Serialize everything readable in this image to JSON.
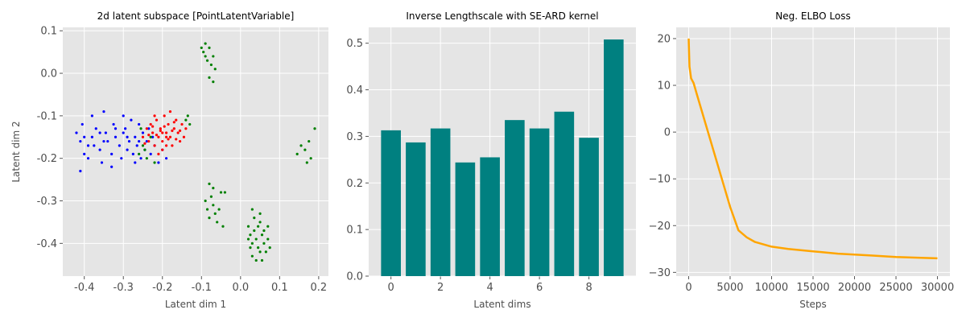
{
  "chart_data": [
    {
      "type": "scatter",
      "title": "2d latent subspace [PointLatentVariable]",
      "xlabel": "Latent dim 1",
      "ylabel": "Latent dim 2",
      "xlim": [
        -0.455,
        0.225
      ],
      "ylim": [
        -0.477,
        0.108
      ],
      "xticks": [
        "-0.4",
        "-0.3",
        "-0.2",
        "-0.1",
        "0.0",
        "0.1",
        "0.2"
      ],
      "xtick_values": [
        -0.4,
        -0.3,
        -0.2,
        -0.1,
        0.0,
        0.1,
        0.2
      ],
      "yticks": [
        "0.1",
        "0.0",
        "-0.1",
        "-0.2",
        "-0.3",
        "-0.4"
      ],
      "ytick_values": [
        0.1,
        0.0,
        -0.1,
        -0.2,
        -0.3,
        -0.4
      ],
      "grid": true,
      "series": [
        {
          "color": "#0000ff",
          "points": [
            [
              -0.42,
              -0.14
            ],
            [
              -0.41,
              -0.16
            ],
            [
              -0.4,
              -0.19
            ],
            [
              -0.405,
              -0.12
            ],
            [
              -0.39,
              -0.2
            ],
            [
              -0.38,
              -0.15
            ],
            [
              -0.375,
              -0.17
            ],
            [
              -0.37,
              -0.13
            ],
            [
              -0.36,
              -0.18
            ],
            [
              -0.355,
              -0.21
            ],
            [
              -0.35,
              -0.09
            ],
            [
              -0.345,
              -0.14
            ],
            [
              -0.34,
              -0.16
            ],
            [
              -0.33,
              -0.19
            ],
            [
              -0.325,
              -0.12
            ],
            [
              -0.32,
              -0.15
            ],
            [
              -0.31,
              -0.17
            ],
            [
              -0.305,
              -0.2
            ],
            [
              -0.3,
              -0.14
            ],
            [
              -0.295,
              -0.13
            ],
            [
              -0.29,
              -0.18
            ],
            [
              -0.285,
              -0.16
            ],
            [
              -0.28,
              -0.11
            ],
            [
              -0.275,
              -0.19
            ],
            [
              -0.27,
              -0.15
            ],
            [
              -0.265,
              -0.17
            ],
            [
              -0.26,
              -0.12
            ],
            [
              -0.255,
              -0.2
            ],
            [
              -0.25,
              -0.14
            ],
            [
              -0.245,
              -0.18
            ],
            [
              -0.24,
              -0.16
            ],
            [
              -0.235,
              -0.13
            ],
            [
              -0.23,
              -0.19
            ],
            [
              -0.225,
              -0.15
            ],
            [
              -0.22,
              -0.17
            ],
            [
              -0.21,
              -0.21
            ],
            [
              -0.2,
              -0.18
            ],
            [
              -0.19,
              -0.2
            ],
            [
              -0.41,
              -0.23
            ],
            [
              -0.38,
              -0.1
            ],
            [
              -0.33,
              -0.22
            ],
            [
              -0.36,
              -0.14
            ],
            [
              -0.3,
              -0.1
            ],
            [
              -0.27,
              -0.21
            ],
            [
              -0.35,
              -0.16
            ],
            [
              -0.4,
              -0.15
            ],
            [
              -0.39,
              -0.17
            ],
            [
              -0.32,
              -0.13
            ],
            [
              -0.29,
              -0.15
            ],
            [
              -0.26,
              -0.16
            ]
          ]
        },
        {
          "color": "#ff0000",
          "points": [
            [
              -0.25,
              -0.15
            ],
            [
              -0.24,
              -0.13
            ],
            [
              -0.235,
              -0.16
            ],
            [
              -0.23,
              -0.12
            ],
            [
              -0.225,
              -0.14
            ],
            [
              -0.22,
              -0.17
            ],
            [
              -0.215,
              -0.11
            ],
            [
              -0.21,
              -0.15
            ],
            [
              -0.205,
              -0.13
            ],
            [
              -0.2,
              -0.16
            ],
            [
              -0.195,
              -0.1
            ],
            [
              -0.19,
              -0.14
            ],
            [
              -0.185,
              -0.12
            ],
            [
              -0.18,
              -0.15
            ],
            [
              -0.175,
              -0.17
            ],
            [
              -0.17,
              -0.13
            ],
            [
              -0.165,
              -0.11
            ],
            [
              -0.16,
              -0.14
            ],
            [
              -0.155,
              -0.16
            ],
            [
              -0.15,
              -0.12
            ],
            [
              -0.145,
              -0.15
            ],
            [
              -0.14,
              -0.13
            ],
            [
              -0.2,
              -0.18
            ],
            [
              -0.19,
              -0.17
            ],
            [
              -0.21,
              -0.19
            ],
            [
              -0.18,
              -0.09
            ],
            [
              -0.22,
              -0.1
            ],
            [
              -0.2,
              -0.14
            ],
            [
              -0.19,
              -0.15
            ],
            [
              -0.205,
              -0.135
            ],
            [
              -0.195,
              -0.125
            ],
            [
              -0.185,
              -0.155
            ],
            [
              -0.215,
              -0.145
            ],
            [
              -0.175,
              -0.135
            ],
            [
              -0.165,
              -0.155
            ],
            [
              -0.225,
              -0.125
            ],
            [
              -0.235,
              -0.145
            ],
            [
              -0.245,
              -0.165
            ],
            [
              -0.155,
              -0.135
            ],
            [
              -0.17,
              -0.115
            ]
          ]
        },
        {
          "color": "#008000",
          "points": [
            [
              -0.26,
              -0.19
            ],
            [
              -0.25,
              -0.17
            ],
            [
              -0.24,
              -0.2
            ],
            [
              -0.23,
              -0.15
            ],
            [
              -0.22,
              -0.21
            ],
            [
              -0.255,
              -0.13
            ],
            [
              -0.245,
              -0.18
            ],
            [
              -0.135,
              -0.1
            ],
            [
              -0.13,
              -0.12
            ],
            [
              -0.14,
              -0.11
            ],
            [
              -0.09,
              0.07
            ],
            [
              -0.095,
              0.05
            ],
            [
              -0.085,
              0.03
            ],
            [
              -0.08,
              0.06
            ],
            [
              -0.075,
              0.02
            ],
            [
              -0.07,
              0.04
            ],
            [
              -0.065,
              0.01
            ],
            [
              -0.08,
              -0.01
            ],
            [
              -0.07,
              -0.02
            ],
            [
              -0.1,
              0.06
            ],
            [
              -0.09,
              0.04
            ],
            [
              0.145,
              -0.19
            ],
            [
              0.155,
              -0.17
            ],
            [
              0.165,
              -0.18
            ],
            [
              0.175,
              -0.16
            ],
            [
              0.18,
              -0.2
            ],
            [
              0.19,
              -0.13
            ],
            [
              0.17,
              -0.21
            ],
            [
              -0.09,
              -0.3
            ],
            [
              -0.085,
              -0.32
            ],
            [
              -0.08,
              -0.34
            ],
            [
              -0.075,
              -0.29
            ],
            [
              -0.07,
              -0.31
            ],
            [
              -0.065,
              -0.33
            ],
            [
              -0.06,
              -0.35
            ],
            [
              -0.055,
              -0.32
            ],
            [
              -0.05,
              -0.28
            ],
            [
              -0.045,
              -0.36
            ],
            [
              -0.07,
              -0.27
            ],
            [
              -0.08,
              -0.26
            ],
            [
              -0.04,
              -0.28
            ],
            [
              0.02,
              -0.36
            ],
            [
              0.025,
              -0.38
            ],
            [
              0.03,
              -0.4
            ],
            [
              0.035,
              -0.37
            ],
            [
              0.04,
              -0.39
            ],
            [
              0.045,
              -0.41
            ],
            [
              0.05,
              -0.35
            ],
            [
              0.055,
              -0.38
            ],
            [
              0.06,
              -0.4
            ],
            [
              0.065,
              -0.42
            ],
            [
              0.07,
              -0.39
            ],
            [
              0.03,
              -0.43
            ],
            [
              0.04,
              -0.44
            ],
            [
              0.05,
              -0.42
            ],
            [
              0.035,
              -0.34
            ],
            [
              0.045,
              -0.36
            ],
            [
              0.055,
              -0.44
            ],
            [
              0.025,
              -0.41
            ],
            [
              0.06,
              -0.37
            ],
            [
              0.07,
              -0.36
            ],
            [
              0.075,
              -0.41
            ],
            [
              0.02,
              -0.39
            ],
            [
              0.03,
              -0.32
            ],
            [
              0.05,
              -0.33
            ]
          ]
        }
      ]
    },
    {
      "type": "bar",
      "title": "Inverse Lengthscale with SE-ARD kernel",
      "xlabel": "Latent dims",
      "ylabel": "",
      "categories": [
        0,
        1,
        2,
        3,
        4,
        5,
        6,
        7,
        8,
        9
      ],
      "values": [
        0.313,
        0.287,
        0.317,
        0.244,
        0.255,
        0.335,
        0.317,
        0.353,
        0.297,
        0.508
      ],
      "bar_color": "#008080",
      "xlim": [
        -0.9,
        9.9
      ],
      "ylim": [
        0,
        0.534
      ],
      "xticks": [
        "0",
        "2",
        "4",
        "6",
        "8"
      ],
      "xtick_values": [
        0,
        2,
        4,
        6,
        8
      ],
      "yticks": [
        "0.0",
        "0.1",
        "0.2",
        "0.3",
        "0.4",
        "0.5"
      ],
      "ytick_values": [
        0.0,
        0.1,
        0.2,
        0.3,
        0.4,
        0.5
      ],
      "grid": true
    },
    {
      "type": "line",
      "title": "Neg. ELBO Loss",
      "xlabel": "Steps",
      "ylabel": "",
      "line_color": "#ffa500",
      "xlim": [
        -1500,
        31500
      ],
      "ylim": [
        -30.8,
        22.4
      ],
      "xticks": [
        "0",
        "5000",
        "10000",
        "15000",
        "20000",
        "25000",
        "30000"
      ],
      "xtick_values": [
        0,
        5000,
        10000,
        15000,
        20000,
        25000,
        30000
      ],
      "yticks": [
        "20",
        "10",
        "0",
        "−10",
        "−20",
        "−30"
      ],
      "ytick_values": [
        20,
        10,
        0,
        -10,
        -20,
        -30
      ],
      "grid": true,
      "x": [
        0,
        100,
        300,
        600,
        1000,
        2000,
        3000,
        4000,
        5000,
        6000,
        7000,
        8000,
        10000,
        12000,
        15000,
        18000,
        20000,
        22000,
        25000,
        28000,
        30000
      ],
      "y": [
        20,
        14,
        11.5,
        10.5,
        8,
        2,
        -4,
        -10,
        -16,
        -21,
        -22.5,
        -23.5,
        -24.5,
        -25,
        -25.5,
        -26,
        -26.2,
        -26.4,
        -26.7,
        -26.9,
        -27
      ]
    }
  ]
}
